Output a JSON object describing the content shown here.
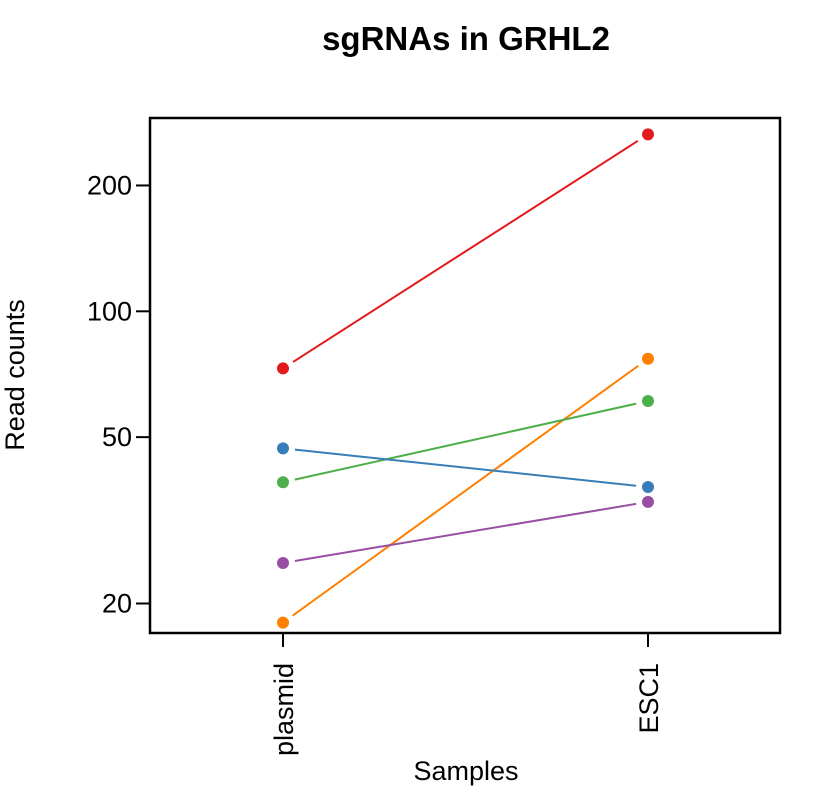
{
  "chart_data": {
    "type": "line",
    "title": "sgRNAs in GRHL2",
    "xlabel": "Samples",
    "ylabel": "Read counts",
    "categories": [
      "plasmid",
      "ESC1"
    ],
    "y_scale": "log",
    "ylim": [
      17,
      290
    ],
    "y_ticks": [
      20,
      50,
      100,
      200
    ],
    "y_tick_labels": [
      "20",
      "50",
      "100",
      "200"
    ],
    "grid": false,
    "legend": "none",
    "series": [
      {
        "color": "#e31a1c",
        "values": [
          73,
          265
        ]
      },
      {
        "color": "#ff7f00",
        "values": [
          18,
          77
        ]
      },
      {
        "color": "#4daf4a",
        "values": [
          39,
          61
        ]
      },
      {
        "color": "#377eb8",
        "values": [
          47,
          38
        ]
      },
      {
        "color": "#984ea3",
        "values": [
          25,
          35
        ]
      }
    ]
  }
}
